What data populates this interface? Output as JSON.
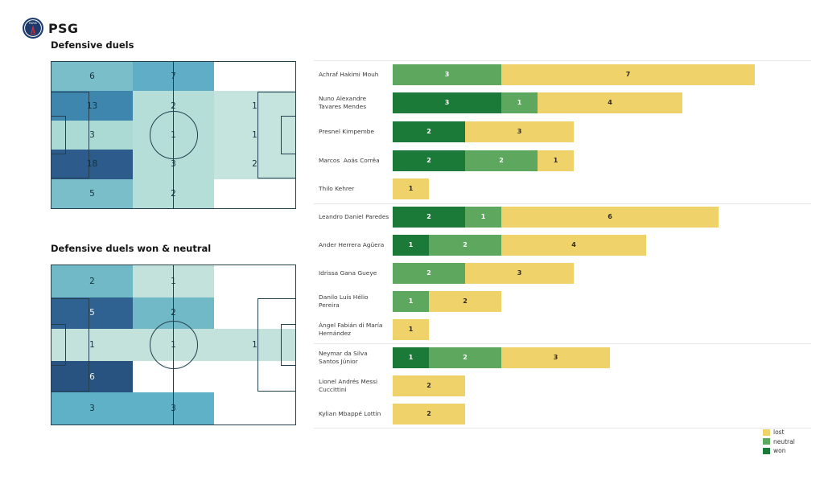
{
  "header": {
    "team": "PSG"
  },
  "colors": {
    "won": "#1c7a38",
    "neutral": "#5ea75e",
    "lost": "#efd36a",
    "lost_text": "#2f2a1c",
    "pitch_line": "#22404f",
    "logo_navy": "#1c3a6b",
    "logo_red": "#d03040"
  },
  "pitches": [
    {
      "title": "Defensive duels",
      "cells": [
        [
          {
            "v": "6",
            "bg": "#7abeca"
          },
          {
            "v": "7",
            "bg": "#5fadc6"
          },
          {
            "v": "",
            "bg": ""
          }
        ],
        [
          {
            "v": "13",
            "bg": "#3e86ae"
          },
          {
            "v": "2",
            "bg": "#b5ded8"
          },
          {
            "v": "1",
            "bg": "#c6e4de"
          }
        ],
        [
          {
            "v": "3",
            "bg": "#abdad4"
          },
          {
            "v": "1",
            "bg": "#b5ded8"
          },
          {
            "v": "1",
            "bg": "#c6e4de"
          }
        ],
        [
          {
            "v": "18",
            "bg": "#2d5c8c"
          },
          {
            "v": "3",
            "bg": "#b5ded8"
          },
          {
            "v": "2",
            "bg": "#c6e4de"
          }
        ],
        [
          {
            "v": "5",
            "bg": "#7abeca"
          },
          {
            "v": "2",
            "bg": "#b5ded8"
          },
          {
            "v": "",
            "bg": ""
          }
        ]
      ]
    },
    {
      "title": "Defensive duels won & neutral",
      "cells": [
        [
          {
            "v": "2",
            "bg": "#72b9c7"
          },
          {
            "v": "1",
            "bg": "#c2e2db"
          },
          {
            "v": "",
            "bg": ""
          }
        ],
        [
          {
            "v": "5",
            "bg": "#2f6290",
            "fg": "#eef3f6"
          },
          {
            "v": "2",
            "bg": "#72b9c7"
          },
          {
            "v": "",
            "bg": ""
          }
        ],
        [
          {
            "v": "1",
            "bg": "#c2e2db"
          },
          {
            "v": "1",
            "bg": "#c2e2db"
          },
          {
            "v": "1",
            "bg": "#c2e2db"
          }
        ],
        [
          {
            "v": "6",
            "bg": "#28527f",
            "fg": "#eef3f6"
          },
          {
            "v": "",
            "bg": ""
          },
          {
            "v": "",
            "bg": ""
          }
        ],
        [
          {
            "v": "3",
            "bg": "#5fb1c7"
          },
          {
            "v": "3",
            "bg": "#5fb1c7"
          },
          {
            "v": "",
            "bg": ""
          }
        ]
      ]
    }
  ],
  "chart": {
    "groups": [
      5,
      5,
      3
    ],
    "players": [
      {
        "label_lines": [
          "Achraf Hakimi Mouh"
        ],
        "won": 0,
        "neutral": 3,
        "lost": 7
      },
      {
        "label_lines": [
          "Nuno Alexandre",
          "Tavares Mendes"
        ],
        "won": 3,
        "neutral": 1,
        "lost": 4
      },
      {
        "label_lines": [
          "Presnel Kimpembe"
        ],
        "won": 2,
        "neutral": 0,
        "lost": 3
      },
      {
        "label_lines": [
          "Marcos  Aoás Corrêa"
        ],
        "won": 2,
        "neutral": 2,
        "lost": 1
      },
      {
        "label_lines": [
          "Thilo Kehrer"
        ],
        "won": 0,
        "neutral": 0,
        "lost": 1
      },
      {
        "label_lines": [
          "Leandro Daniel Paredes"
        ],
        "won": 2,
        "neutral": 1,
        "lost": 6
      },
      {
        "label_lines": [
          "Ander Herrera Agüera"
        ],
        "won": 1,
        "neutral": 2,
        "lost": 4
      },
      {
        "label_lines": [
          "Idrissa Gana Gueye"
        ],
        "won": 0,
        "neutral": 2,
        "lost": 3
      },
      {
        "label_lines": [
          "Danilo Luís Hélio",
          "Pereira"
        ],
        "won": 0,
        "neutral": 1,
        "lost": 2
      },
      {
        "label_lines": [
          "Ángel Fabián di María",
          "Hernández"
        ],
        "won": 0,
        "neutral": 0,
        "lost": 1
      },
      {
        "label_lines": [
          "Neymar da Silva",
          "Santos Júnior"
        ],
        "won": 1,
        "neutral": 2,
        "lost": 3
      },
      {
        "label_lines": [
          "Lionel Andrés Messi",
          "Cuccittini"
        ],
        "won": 0,
        "neutral": 0,
        "lost": 2
      },
      {
        "label_lines": [
          "Kylian Mbappé Lottin"
        ],
        "won": 0,
        "neutral": 0,
        "lost": 2
      }
    ]
  },
  "legend": [
    {
      "label": "lost",
      "color": "#efd36a"
    },
    {
      "label": "neutral",
      "color": "#5ea75e"
    },
    {
      "label": "won",
      "color": "#1c7a38"
    }
  ],
  "chart_data": [
    {
      "type": "heatmap",
      "title": "Defensive duels",
      "note": "soccer pitch split into 3 horizontal thirds x 5 vertical lanes, attacking left-to-right",
      "rows": 5,
      "cols": 3,
      "grid": [
        [
          6,
          7,
          null
        ],
        [
          13,
          2,
          1
        ],
        [
          3,
          1,
          1
        ],
        [
          18,
          3,
          2
        ],
        [
          5,
          2,
          null
        ]
      ]
    },
    {
      "type": "heatmap",
      "title": "Defensive duels won & neutral",
      "rows": 5,
      "cols": 3,
      "grid": [
        [
          2,
          1,
          null
        ],
        [
          5,
          2,
          null
        ],
        [
          1,
          1,
          1
        ],
        [
          6,
          null,
          null
        ],
        [
          3,
          3,
          null
        ]
      ]
    },
    {
      "type": "bar",
      "orientation": "horizontal",
      "stacked": true,
      "categories": [
        "Achraf Hakimi Mouh",
        "Nuno Alexandre Tavares Mendes",
        "Presnel Kimpembe",
        "Marcos  Aoás Corrêa",
        "Thilo Kehrer",
        "Leandro Daniel Paredes",
        "Ander Herrera Agüera",
        "Idrissa Gana Gueye",
        "Danilo Luís Hélio Pereira",
        "Ángel Fabián di María Hernández",
        "Neymar da Silva Santos Júnior",
        "Lionel Andrés Messi Cuccittini",
        "Kylian Mbappé Lottin"
      ],
      "series": [
        {
          "name": "won",
          "color": "#1c7a38",
          "values": [
            0,
            3,
            2,
            2,
            0,
            2,
            1,
            0,
            0,
            0,
            1,
            0,
            0
          ]
        },
        {
          "name": "neutral",
          "color": "#5ea75e",
          "values": [
            3,
            1,
            0,
            2,
            0,
            1,
            2,
            2,
            1,
            0,
            2,
            0,
            0
          ]
        },
        {
          "name": "lost",
          "color": "#efd36a",
          "values": [
            7,
            4,
            3,
            1,
            1,
            6,
            4,
            3,
            2,
            1,
            3,
            2,
            2
          ]
        }
      ],
      "xlim": [
        0,
        10
      ],
      "grid": false,
      "legend_position": "lower right",
      "group_breaks_after": [
        "Thilo Kehrer",
        "Ángel Fabián di María Hernández"
      ]
    }
  ]
}
